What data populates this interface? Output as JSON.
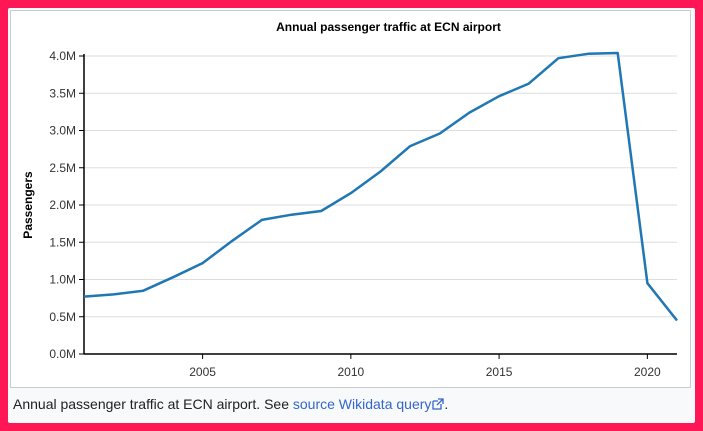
{
  "chart_data": {
    "type": "line",
    "title": "Annual passenger traffic at ECN airport",
    "xlabel": "",
    "ylabel": "Passengers",
    "x": [
      2001,
      2002,
      2003,
      2004,
      2005,
      2006,
      2007,
      2008,
      2009,
      2010,
      2011,
      2012,
      2013,
      2014,
      2015,
      2016,
      2017,
      2018,
      2019,
      2020,
      2021
    ],
    "series": [
      {
        "values": [
          0.77,
          0.8,
          0.85,
          1.03,
          1.22,
          1.52,
          1.8,
          1.87,
          1.92,
          2.16,
          2.45,
          2.79,
          2.96,
          3.24,
          3.46,
          3.63,
          3.97,
          4.03,
          4.04,
          0.95,
          0.45
        ]
      }
    ],
    "xlim": [
      2001,
      2021
    ],
    "ylim": [
      0,
      4.0
    ],
    "xticks": [
      "2005",
      "2010",
      "2015",
      "2020"
    ],
    "yticks": [
      "0.0M",
      "0.5M",
      "1.0M",
      "1.5M",
      "2.0M",
      "2.5M",
      "3.0M",
      "3.5M",
      "4.0M"
    ],
    "grid": true,
    "line_color": "#1f77b4"
  },
  "caption": {
    "text": "Annual passenger traffic at ECN airport. See ",
    "link": "source Wikidata query",
    "link_icon": "external-link-icon",
    "end": "."
  }
}
